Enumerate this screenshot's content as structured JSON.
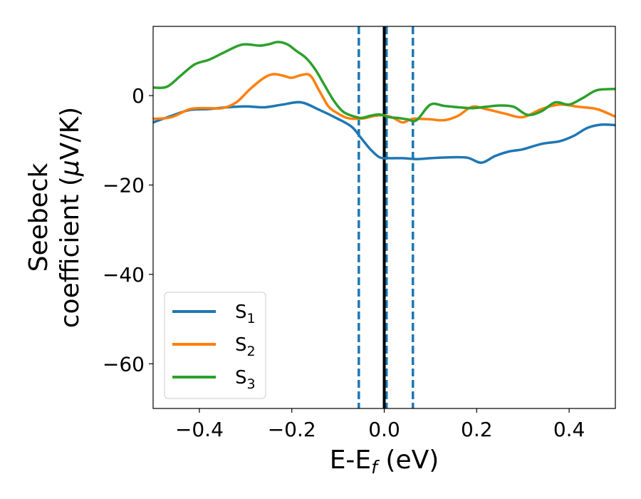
{
  "chart_data": {
    "type": "line",
    "xlabel": {
      "prefix": "E-E",
      "sub": "f",
      "suffix": " (eV)"
    },
    "ylabel": {
      "line1": "Seebeck",
      "line2_prefix": "coefficient  (",
      "line2_mu": "μ",
      "line2_suffix": "V/K)"
    },
    "xlim": [
      -0.5,
      0.5
    ],
    "ylim": [
      -70,
      15.5
    ],
    "x_ticks": [
      -0.4,
      -0.2,
      0.0,
      0.2,
      0.4
    ],
    "x_tick_labels": [
      "−0.4",
      "−0.2",
      "0.0",
      "0.2",
      "0.4"
    ],
    "y_ticks": [
      0,
      -20,
      -40,
      -60
    ],
    "y_tick_labels": [
      "0",
      "−20",
      "−40",
      "−60"
    ],
    "grid": false,
    "legend_position": "lower-left",
    "vlines": [
      {
        "x": -0.055,
        "style": "dashed",
        "color": "#1f77b4"
      },
      {
        "x": 0.005,
        "style": "dashed",
        "color": "#1f77b4"
      },
      {
        "x": 0.062,
        "style": "dashed",
        "color": "#1f77b4"
      },
      {
        "x": 0.0,
        "style": "solid",
        "color": "#000000"
      }
    ],
    "series": [
      {
        "label": {
          "base": "S",
          "sub": "1"
        },
        "color": "#1f77b4",
        "x": [
          -0.5,
          -0.46,
          -0.42,
          -0.38,
          -0.34,
          -0.3,
          -0.26,
          -0.22,
          -0.18,
          -0.14,
          -0.1,
          -0.07,
          -0.05,
          -0.03,
          -0.01,
          0.01,
          0.04,
          0.07,
          0.1,
          0.14,
          0.18,
          0.21,
          0.24,
          0.27,
          0.3,
          0.34,
          0.38,
          0.41,
          0.44,
          0.47,
          0.5
        ],
        "y": [
          -6.0,
          -4.5,
          -3.2,
          -3.0,
          -2.6,
          -2.4,
          -2.6,
          -2.0,
          -1.5,
          -3.2,
          -5.2,
          -7.0,
          -9.5,
          -12.0,
          -13.8,
          -14.0,
          -14.0,
          -14.2,
          -14.0,
          -13.8,
          -13.9,
          -15.0,
          -13.5,
          -12.5,
          -12.0,
          -10.8,
          -10.2,
          -9.0,
          -7.2,
          -6.5,
          -6.6
        ]
      },
      {
        "label": {
          "base": "S",
          "sub": "2"
        },
        "color": "#ff7f0e",
        "x": [
          -0.5,
          -0.46,
          -0.42,
          -0.38,
          -0.35,
          -0.32,
          -0.29,
          -0.26,
          -0.24,
          -0.22,
          -0.2,
          -0.18,
          -0.16,
          -0.14,
          -0.12,
          -0.1,
          -0.08,
          -0.06,
          -0.04,
          -0.02,
          0.0,
          0.02,
          0.04,
          0.06,
          0.08,
          0.1,
          0.13,
          0.16,
          0.19,
          0.22,
          0.26,
          0.3,
          0.34,
          0.38,
          0.42,
          0.46,
          0.5
        ],
        "y": [
          -5.2,
          -4.8,
          -3.0,
          -2.8,
          -2.8,
          -1.5,
          1.5,
          4.0,
          4.8,
          4.5,
          4.0,
          4.6,
          4.5,
          1.0,
          -2.5,
          -4.0,
          -5.0,
          -5.2,
          -5.0,
          -4.5,
          -4.4,
          -5.0,
          -6.0,
          -5.2,
          -5.2,
          -5.3,
          -5.5,
          -4.5,
          -2.5,
          -3.0,
          -4.0,
          -4.8,
          -3.0,
          -2.0,
          -2.5,
          -3.0,
          -4.7
        ]
      },
      {
        "label": {
          "base": "S",
          "sub": "3"
        },
        "color": "#2ca02c",
        "x": [
          -0.5,
          -0.47,
          -0.44,
          -0.41,
          -0.38,
          -0.35,
          -0.32,
          -0.3,
          -0.27,
          -0.25,
          -0.23,
          -0.21,
          -0.19,
          -0.17,
          -0.15,
          -0.13,
          -0.11,
          -0.09,
          -0.07,
          -0.05,
          -0.03,
          -0.01,
          0.01,
          0.03,
          0.05,
          0.07,
          0.1,
          0.13,
          0.16,
          0.19,
          0.22,
          0.25,
          0.28,
          0.31,
          0.34,
          0.37,
          0.4,
          0.43,
          0.46,
          0.5
        ],
        "y": [
          1.8,
          2.0,
          4.5,
          7.0,
          8.0,
          9.5,
          11.0,
          11.5,
          11.2,
          11.5,
          12.0,
          11.5,
          10.0,
          8.5,
          6.0,
          2.5,
          -1.0,
          -3.5,
          -4.5,
          -5.0,
          -4.5,
          -4.2,
          -4.8,
          -5.0,
          -5.3,
          -5.5,
          -2.0,
          -2.3,
          -2.6,
          -2.8,
          -2.5,
          -2.2,
          -2.5,
          -4.3,
          -3.5,
          -1.5,
          -2.0,
          -0.5,
          1.2,
          1.5
        ]
      }
    ]
  }
}
